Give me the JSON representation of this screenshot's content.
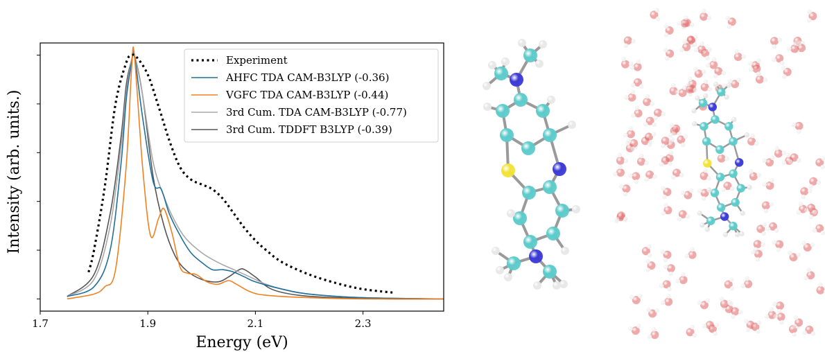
{
  "chart_data": {
    "type": "line",
    "title": "",
    "xlabel": "Energy (eV)",
    "ylabel": "Intensity (arb. units.)",
    "xlim": [
      1.7,
      2.45
    ],
    "ylim": [
      -0.05,
      1.05
    ],
    "xticks": [
      1.7,
      1.9,
      2.1,
      2.3
    ],
    "xtick_labels": [
      "1.7",
      "1.9",
      "2.1",
      "2.3"
    ],
    "ytick_labels_visible": false,
    "grid": false,
    "legend_position": "top-right",
    "series": [
      {
        "name": "Experiment",
        "color": "#000000",
        "style": "dotted",
        "x": [
          1.79,
          1.8,
          1.82,
          1.84,
          1.86,
          1.87,
          1.88,
          1.9,
          1.92,
          1.94,
          1.96,
          1.98,
          2.0,
          2.02,
          2.04,
          2.06,
          2.08,
          2.1,
          2.12,
          2.15,
          2.2,
          2.25,
          2.3,
          2.36
        ],
        "y": [
          0.11,
          0.2,
          0.46,
          0.8,
          0.97,
          1.0,
          0.99,
          0.92,
          0.79,
          0.65,
          0.54,
          0.49,
          0.47,
          0.45,
          0.41,
          0.35,
          0.29,
          0.24,
          0.2,
          0.15,
          0.1,
          0.065,
          0.04,
          0.025
        ]
      },
      {
        "name": "AHFC TDA CAM-B3LYP (-0.36)",
        "color": "#1f6f9c",
        "style": "solid",
        "x": [
          1.75,
          1.8,
          1.83,
          1.85,
          1.86,
          1.87,
          1.875,
          1.89,
          1.91,
          1.925,
          1.94,
          1.96,
          1.98,
          2.0,
          2.02,
          2.04,
          2.06,
          2.08,
          2.1,
          2.15,
          2.2,
          2.3,
          2.45
        ],
        "y": [
          0.01,
          0.05,
          0.2,
          0.55,
          0.82,
          0.97,
          1.0,
          0.75,
          0.48,
          0.45,
          0.35,
          0.26,
          0.19,
          0.15,
          0.12,
          0.12,
          0.11,
          0.09,
          0.07,
          0.04,
          0.02,
          0.005,
          0.0
        ]
      },
      {
        "name": "VGFC TDA CAM-B3LYP (-0.44)",
        "color": "#f08020",
        "style": "solid",
        "x": [
          1.75,
          1.8,
          1.82,
          1.84,
          1.86,
          1.87,
          1.875,
          1.89,
          1.905,
          1.92,
          1.93,
          1.945,
          1.96,
          1.975,
          1.99,
          2.01,
          2.03,
          2.05,
          2.065,
          2.09,
          2.12,
          2.2,
          2.3,
          2.45
        ],
        "y": [
          0.0,
          0.02,
          0.05,
          0.12,
          0.55,
          0.95,
          1.0,
          0.55,
          0.26,
          0.33,
          0.37,
          0.27,
          0.13,
          0.105,
          0.1,
          0.07,
          0.06,
          0.075,
          0.06,
          0.03,
          0.015,
          0.005,
          0.0,
          0.0
        ]
      },
      {
        "name": "3rd Cum. TDA CAM-B3LYP (-0.77)",
        "color": "#a8a8a8",
        "style": "solid",
        "x": [
          1.75,
          1.8,
          1.83,
          1.85,
          1.86,
          1.87,
          1.875,
          1.89,
          1.91,
          1.93,
          1.95,
          1.97,
          2.0,
          2.03,
          2.06,
          2.09,
          2.12,
          2.15,
          2.2,
          2.3,
          2.45
        ],
        "y": [
          0.01,
          0.08,
          0.3,
          0.62,
          0.85,
          0.98,
          1.0,
          0.84,
          0.56,
          0.42,
          0.32,
          0.25,
          0.19,
          0.15,
          0.12,
          0.09,
          0.06,
          0.04,
          0.02,
          0.005,
          0.0
        ]
      },
      {
        "name": "3rd Cum. TDDFT B3LYP (-0.39)",
        "color": "#555555",
        "style": "solid",
        "x": [
          1.75,
          1.8,
          1.83,
          1.85,
          1.86,
          1.87,
          1.875,
          1.89,
          1.91,
          1.93,
          1.95,
          1.97,
          2.0,
          2.03,
          2.05,
          2.07,
          2.08,
          2.1,
          2.13,
          2.18,
          2.25,
          2.35,
          2.45
        ],
        "y": [
          0.01,
          0.1,
          0.35,
          0.66,
          0.88,
          0.98,
          1.0,
          0.84,
          0.5,
          0.3,
          0.18,
          0.12,
          0.08,
          0.07,
          0.09,
          0.12,
          0.12,
          0.09,
          0.04,
          0.015,
          0.005,
          0.0,
          0.0
        ]
      }
    ]
  },
  "molecules": {
    "colors": {
      "carbon": "#5ecbcb",
      "nitrogen": "#3b3bd6",
      "sulfur": "#f2e33a",
      "hydrogen": "#e8e8e8",
      "oxygen": "#e06060",
      "bond": "#9a9a9a"
    }
  }
}
